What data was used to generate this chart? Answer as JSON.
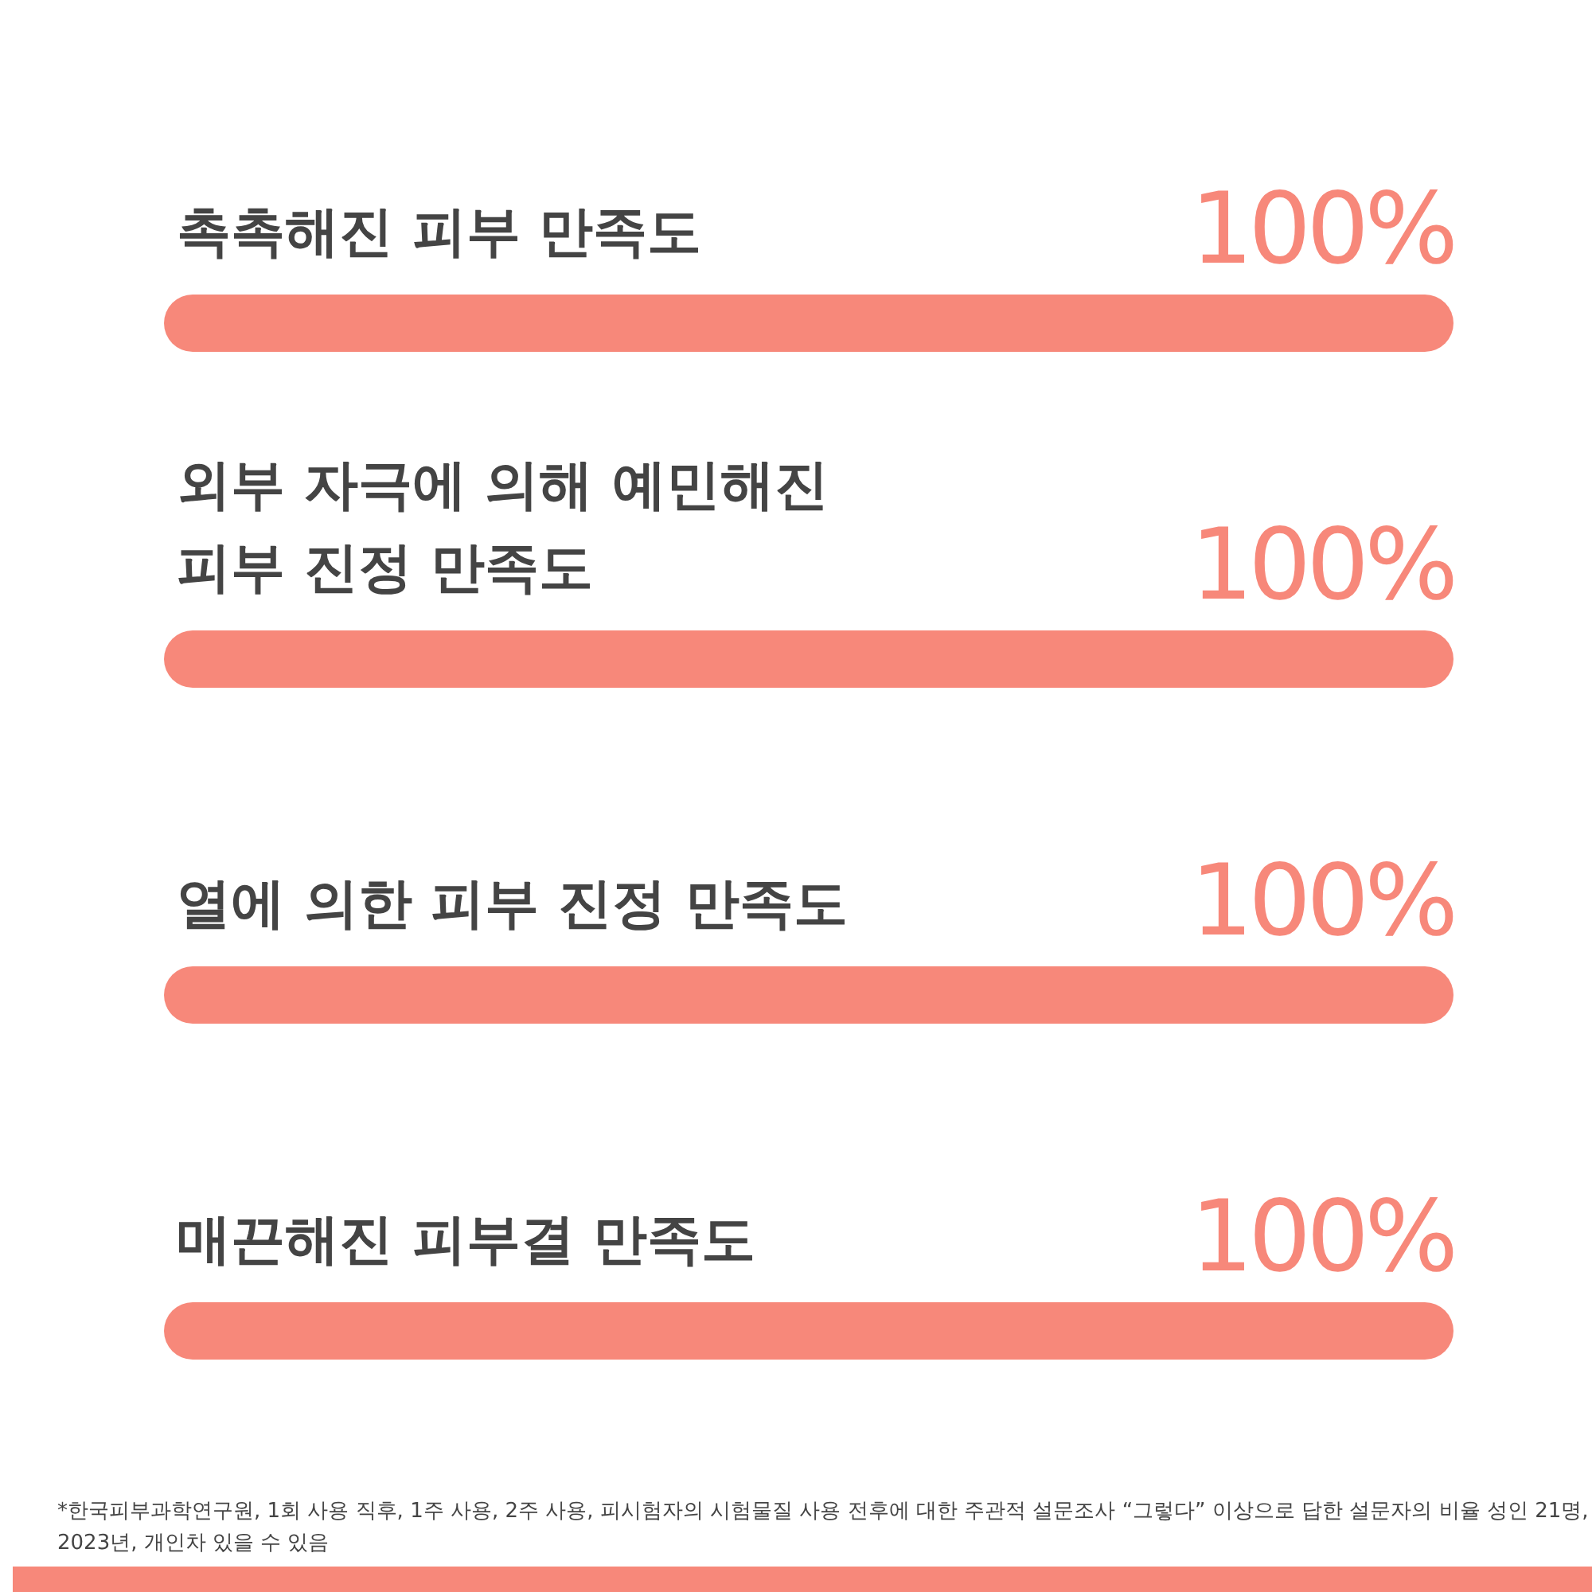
{
  "chart_data": {
    "type": "bar",
    "orientation": "horizontal",
    "categories": [
      "촉촉해진 피부 만족도",
      "외부 자극에 의해 예민해진 피부 진정 만족도",
      "열에 의한 피부 진정 만족도",
      "매끈해진 피부결 만족도"
    ],
    "values": [
      100,
      100,
      100,
      100
    ],
    "color": "#f7887a",
    "value_labels": [
      "100%",
      "100%",
      "100%",
      "100%"
    ],
    "annotations": [
      "*한국피부과학연구원, 1회 사용 직후, 1주 사용, 2주 사용, 피시험자의 시험물질 사용 전후에 대한 주관적 설문조사 “그렇다” 이상으로 답한 설문자의 비율 성인 21명, 2023년, 개인차 있을 수 있음"
    ]
  }
}
